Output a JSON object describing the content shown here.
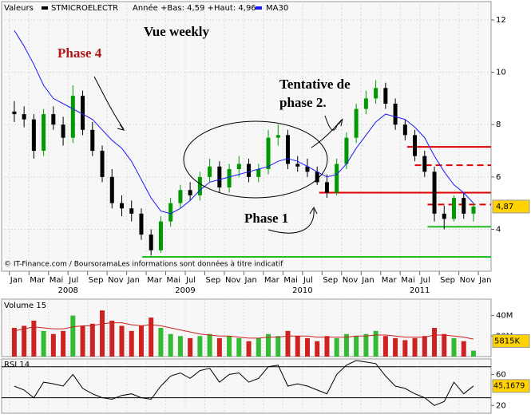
{
  "chart_data": {
    "type": "candlestick",
    "header": {
      "label": "Valeurs",
      "symbol": "STMICROELECTR",
      "range": "Année +Bas: 4,59 +Haut: 4,96"
    },
    "ohlc": {
      "open": [
        8.5,
        8.4,
        8.2,
        7.0,
        8.4,
        8.0,
        7.5,
        9.1,
        7.8,
        7.0,
        6.0,
        5.0,
        4.8,
        4.6,
        3.8,
        3.2,
        4.3,
        5.0,
        5.5,
        5.3,
        6.0,
        6.4,
        5.6,
        6.3,
        6.5,
        6.0,
        6.3,
        7.5,
        7.6,
        6.5,
        6.4,
        6.2,
        5.8,
        5.4,
        6.5,
        7.5,
        8.6,
        9.0,
        9.4,
        8.8,
        8.0,
        7.6,
        6.8,
        6.2,
        4.6,
        4.4,
        5.2,
        4.6
      ],
      "high": [
        8.9,
        8.7,
        8.4,
        8.6,
        8.7,
        8.3,
        9.5,
        9.3,
        8.1,
        7.2,
        6.3,
        5.3,
        5.1,
        4.8,
        4.0,
        4.5,
        5.2,
        5.7,
        5.8,
        6.2,
        6.7,
        6.6,
        6.5,
        6.8,
        6.7,
        6.5,
        7.8,
        8.0,
        7.8,
        6.8,
        6.7,
        6.4,
        6.1,
        6.7,
        7.7,
        8.8,
        9.3,
        9.7,
        9.6,
        9.0,
        8.2,
        7.8,
        7.0,
        6.4,
        4.9,
        5.3,
        5.4,
        5.0
      ],
      "low": [
        8.1,
        7.9,
        6.7,
        6.8,
        7.8,
        7.2,
        7.3,
        7.6,
        6.8,
        5.8,
        4.8,
        4.5,
        4.3,
        3.6,
        3.0,
        3.1,
        4.1,
        4.8,
        5.1,
        5.1,
        5.8,
        5.4,
        5.4,
        6.0,
        5.8,
        5.8,
        6.1,
        7.2,
        6.3,
        6.2,
        6.0,
        5.7,
        5.2,
        5.3,
        6.3,
        7.3,
        8.4,
        8.8,
        8.6,
        7.8,
        7.4,
        6.6,
        6.0,
        4.3,
        4.0,
        4.3,
        4.4,
        4.3
      ],
      "close": [
        8.4,
        8.2,
        7.0,
        8.4,
        8.0,
        7.5,
        9.1,
        7.8,
        7.0,
        6.0,
        5.0,
        4.8,
        4.6,
        3.8,
        3.2,
        4.3,
        5.0,
        5.5,
        5.3,
        6.0,
        6.4,
        5.6,
        6.3,
        6.5,
        6.0,
        6.3,
        7.5,
        7.6,
        6.5,
        6.4,
        6.2,
        5.8,
        5.4,
        6.5,
        7.5,
        8.6,
        9.0,
        9.4,
        8.8,
        8.0,
        7.6,
        6.8,
        6.2,
        4.6,
        4.4,
        5.2,
        4.6,
        4.87
      ],
      "color_up": "#009900",
      "color_down": "#000000"
    },
    "ma": {
      "name": "MA30",
      "color": "#1a1aff",
      "values": [
        11.6,
        11.0,
        10.3,
        9.5,
        9.0,
        8.8,
        8.6,
        8.4,
        8.2,
        7.8,
        7.4,
        7.1,
        6.6,
        5.9,
        5.2,
        4.7,
        4.6,
        4.8,
        5.1,
        5.5,
        5.8,
        5.9,
        6.0,
        6.1,
        6.2,
        6.3,
        6.4,
        6.6,
        6.7,
        6.6,
        6.4,
        6.2,
        6.0,
        6.1,
        6.5,
        7.1,
        7.6,
        8.1,
        8.4,
        8.3,
        8.2,
        7.9,
        7.5,
        6.8,
        6.2,
        5.7,
        5.4,
        5.0
      ]
    },
    "last_label": "4,87",
    "ylim": [
      2.4,
      12.7
    ],
    "yticks": [
      4,
      6,
      8,
      10,
      12
    ],
    "xlim": [
      -0.8,
      49.3
    ],
    "xticks": [
      {
        "value": 0,
        "label": "Jan"
      },
      {
        "value": 2,
        "label": "Mar"
      },
      {
        "value": 4,
        "label": "Mai"
      },
      {
        "value": 6,
        "label": "Jul"
      },
      {
        "value": 8,
        "label": "Sep"
      },
      {
        "value": 10,
        "label": "Nov"
      },
      {
        "value": 12,
        "label": "Jan"
      },
      {
        "value": 14,
        "label": "Mar"
      },
      {
        "value": 16,
        "label": "Mai"
      },
      {
        "value": 18,
        "label": "Jul"
      },
      {
        "value": 20,
        "label": "Sep"
      },
      {
        "value": 22,
        "label": "Nov"
      },
      {
        "value": 24,
        "label": "Jan"
      },
      {
        "value": 26,
        "label": "Mar"
      },
      {
        "value": 28,
        "label": "Mai"
      },
      {
        "value": 30,
        "label": "Jul"
      },
      {
        "value": 32,
        "label": "Sep"
      },
      {
        "value": 34,
        "label": "Nov"
      },
      {
        "value": 36,
        "label": "Jan"
      },
      {
        "value": 38,
        "label": "Mar"
      },
      {
        "value": 40,
        "label": "Mai"
      },
      {
        "value": 42,
        "label": "Jul"
      },
      {
        "value": 44,
        "label": "Sep"
      },
      {
        "value": 46,
        "label": "Nov"
      },
      {
        "value": 48,
        "label": "Jan"
      }
    ],
    "years": [
      "2008",
      "2009",
      "2010",
      "2011"
    ],
    "grid": true,
    "levels": [
      {
        "value": 7.15,
        "from": 40.7,
        "color": "#e00000",
        "dashed": false
      },
      {
        "value": 6.45,
        "from": 41.5,
        "color": "#e00000",
        "dashed": true
      },
      {
        "value": 5.4,
        "from": 31.7,
        "color": "#e00000",
        "dashed": false
      },
      {
        "value": 4.95,
        "from": 42.8,
        "color": "#e00000",
        "dashed": true
      },
      {
        "value": 4.1,
        "from": 42.8,
        "color": "#22bb22",
        "dashed": false
      },
      {
        "value": 2.95,
        "from": 13.6,
        "color": "#22bb22",
        "dashed": false
      }
    ],
    "annotations": [
      "Vue weekly",
      "Phase 4",
      "Tentative de",
      "phase 2.",
      "Phase 1"
    ],
    "source": "© IT-Finance.com / BoursoramaLes informations sont données à titre indicatif",
    "volume": {
      "label": "Volume 15",
      "values": [
        28,
        30,
        35,
        25,
        22,
        25,
        40,
        30,
        32,
        45,
        35,
        30,
        25,
        30,
        38,
        28,
        22,
        20,
        18,
        20,
        22,
        18,
        20,
        18,
        15,
        18,
        22,
        20,
        25,
        20,
        18,
        15,
        20,
        18,
        22,
        20,
        22,
        25,
        20,
        18,
        16,
        18,
        20,
        28,
        22,
        18,
        15,
        5.815
      ],
      "ma": [
        25,
        27,
        29,
        28,
        27,
        27,
        29,
        30,
        30,
        32,
        33,
        33,
        31,
        30,
        31,
        30,
        28,
        26,
        24,
        22,
        21,
        20,
        20,
        19,
        18,
        18,
        19,
        19,
        20,
        20,
        20,
        19,
        19,
        19,
        19,
        20,
        20,
        21,
        21,
        20,
        19,
        19,
        19,
        21,
        21,
        20,
        19,
        17
      ],
      "ma_color": "#cc2222",
      "ylim": [
        0,
        56
      ],
      "yticks": [
        {
          "value": 20,
          "label": "20M"
        },
        {
          "value": 40,
          "label": "40M"
        }
      ],
      "last_label": "5815K"
    },
    "rsi": {
      "label": "RSI 14",
      "values": [
        45,
        40,
        30,
        50,
        48,
        45,
        60,
        42,
        35,
        30,
        28,
        33,
        35,
        30,
        28,
        45,
        58,
        62,
        55,
        65,
        68,
        50,
        60,
        62,
        50,
        55,
        70,
        72,
        45,
        48,
        45,
        40,
        35,
        60,
        72,
        78,
        76,
        74,
        58,
        45,
        42,
        35,
        30,
        20,
        25,
        50,
        35,
        45.17
      ],
      "color": "#000000",
      "ylim": [
        10,
        80
      ],
      "yticks": [
        20,
        60
      ],
      "bands": [
        30,
        70
      ],
      "last_label": "45,1679"
    }
  }
}
